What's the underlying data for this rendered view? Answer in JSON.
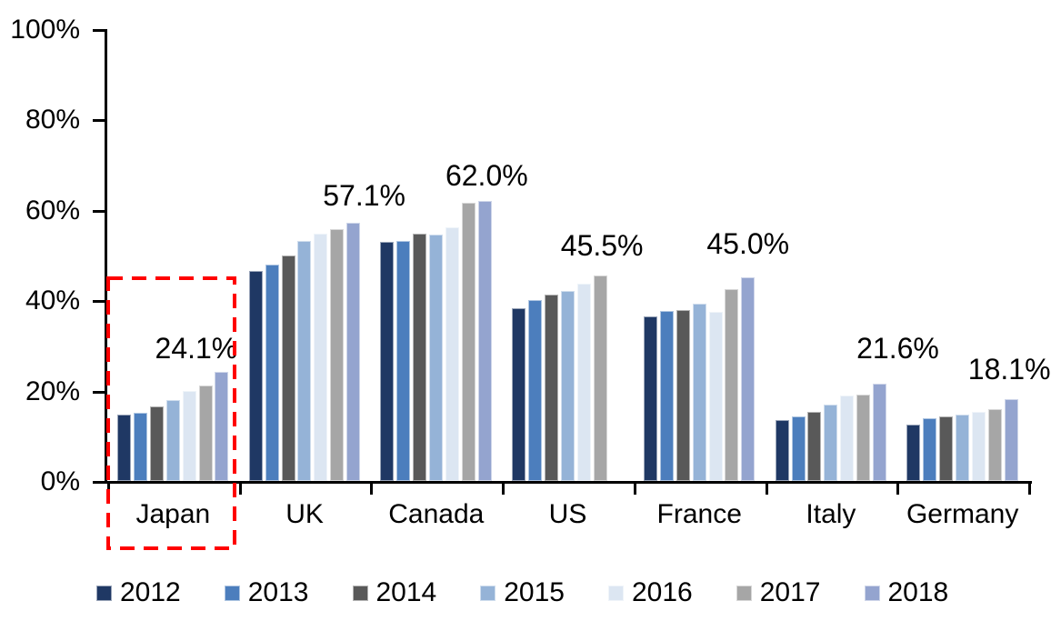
{
  "chart_data": {
    "type": "bar",
    "title": "",
    "categories": [
      "Japan",
      "UK",
      "Canada",
      "US",
      "France",
      "Italy",
      "Germany"
    ],
    "series": [
      {
        "name": "2012",
        "color": "#1F3864",
        "values": [
          14.7,
          46.4,
          52.9,
          38.2,
          36.4,
          13.4,
          12.4
        ]
      },
      {
        "name": "2013",
        "color": "#4C7EBD",
        "values": [
          15.0,
          47.8,
          53.2,
          40.0,
          37.7,
          14.2,
          13.8
        ]
      },
      {
        "name": "2014",
        "color": "#595959",
        "values": [
          16.5,
          49.9,
          54.8,
          41.2,
          37.9,
          15.4,
          14.3
        ]
      },
      {
        "name": "2015",
        "color": "#95B3D7",
        "values": [
          17.9,
          53.2,
          54.6,
          42.1,
          39.3,
          16.9,
          14.7
        ]
      },
      {
        "name": "2016",
        "color": "#DCE6F2",
        "values": [
          19.9,
          54.8,
          56.2,
          43.6,
          37.4,
          18.9,
          15.4
        ]
      },
      {
        "name": "2017",
        "color": "#A6A6A6",
        "values": [
          21.1,
          55.7,
          61.6,
          45.5,
          42.4,
          19.1,
          15.9
        ]
      },
      {
        "name": "2018",
        "color": "#94A4CF",
        "values": [
          24.1,
          57.1,
          62.0,
          null,
          45.0,
          21.6,
          18.1
        ]
      }
    ],
    "data_labels": [
      "24.1%",
      "57.1%",
      "62.0%",
      "45.5%",
      "45.0%",
      "21.6%",
      "18.1%"
    ],
    "y_axis": {
      "ticks": [
        "0%",
        "20%",
        "40%",
        "60%",
        "80%",
        "100%"
      ],
      "min": 0,
      "max": 100,
      "grid": false
    },
    "legend": [
      "2012",
      "2013",
      "2014",
      "2015",
      "2016",
      "2017",
      "2018"
    ],
    "legend_position": "bottom",
    "annotation": {
      "type": "dashed-box",
      "target": "Japan",
      "color": "#FF0000"
    }
  }
}
